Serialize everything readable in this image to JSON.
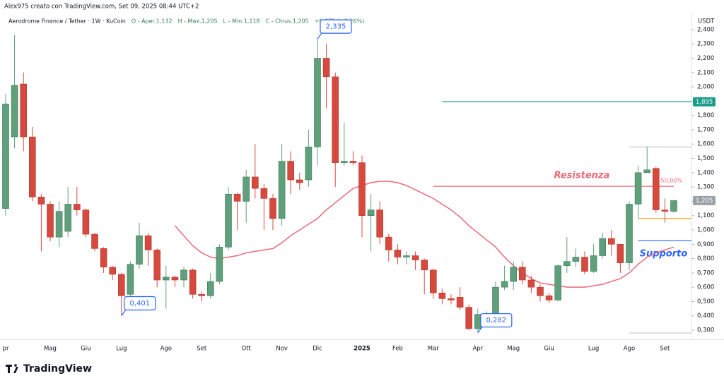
{
  "header": {
    "credit": "Alex975 creato con TradingView.com, Set 09, 2025 08:44 UTC+2",
    "legend": [
      "Aerodrome Finance / Tether · 1W · KuCoin",
      "O - Aper.1,132",
      "H - Max.1,205",
      "L - Min.1,118",
      "C - Chius.1,205",
      "+0,071 (+6,26%)"
    ],
    "brand": "TradingView"
  },
  "chart_data": {
    "type": "candlestick",
    "y_unit": "USDT",
    "categories": [
      "pr",
      null,
      null,
      null,
      null,
      "Mag",
      null,
      null,
      null,
      "Giu",
      null,
      null,
      null,
      "Lug",
      null,
      null,
      null,
      null,
      "Ago",
      null,
      null,
      null,
      "Set",
      null,
      null,
      null,
      null,
      "Ott",
      null,
      null,
      null,
      "Nov",
      null,
      null,
      null,
      "Dic",
      null,
      null,
      null,
      null,
      "2025",
      null,
      null,
      null,
      "Feb",
      null,
      null,
      null,
      "Mar",
      null,
      null,
      null,
      null,
      "Apr",
      null,
      null,
      null,
      "Mag",
      null,
      null,
      null,
      "Giu",
      null,
      null,
      null,
      null,
      "Lug",
      null,
      null,
      null,
      "Ago",
      null,
      null,
      null,
      "Set",
      null
    ],
    "open": [
      1.15,
      1.65,
      2.02,
      1.65,
      1.23,
      1.18,
      0.95,
      0.99,
      1.18,
      1.14,
      0.97,
      0.87,
      0.74,
      0.69,
      0.55,
      0.76,
      0.96,
      0.86,
      0.65,
      0.67,
      0.65,
      0.72,
      0.55,
      0.54,
      0.64,
      0.88,
      1.25,
      1.2,
      1.37,
      1.29,
      1.22,
      1.08,
      1.48,
      1.35,
      1.35,
      1.58,
      2.2,
      2.07,
      1.47,
      1.48,
      1.47,
      1.1,
      1.14,
      0.95,
      0.86,
      0.81,
      0.82,
      0.79,
      0.72,
      0.56,
      0.52,
      0.53,
      0.46,
      0.31,
      0.41,
      0.4,
      0.6,
      0.64,
      0.74,
      0.65,
      0.6,
      0.54,
      0.51,
      0.75,
      0.78,
      0.81,
      0.71,
      0.82,
      0.94,
      0.9,
      0.77,
      1.18,
      1.4,
      1.43,
      1.14,
      1.13
    ],
    "high": [
      1.95,
      2.36,
      2.1,
      1.72,
      1.25,
      1.2,
      1.2,
      1.3,
      1.3,
      1.15,
      0.98,
      0.88,
      0.75,
      0.7,
      0.78,
      1.05,
      0.98,
      0.87,
      0.75,
      0.68,
      0.74,
      0.73,
      0.57,
      0.7,
      0.9,
      1.3,
      1.26,
      1.42,
      1.6,
      1.32,
      1.25,
      1.6,
      1.55,
      1.4,
      1.7,
      2.335,
      2.3,
      2.1,
      1.75,
      1.55,
      1.52,
      1.25,
      1.2,
      0.97,
      0.9,
      0.85,
      0.85,
      0.8,
      0.73,
      0.59,
      0.55,
      0.6,
      0.48,
      0.45,
      0.43,
      0.64,
      0.75,
      0.78,
      0.78,
      0.68,
      0.62,
      0.56,
      0.76,
      0.95,
      0.87,
      0.85,
      0.9,
      0.98,
      1.0,
      0.9,
      1.2,
      1.45,
      1.58,
      1.44,
      1.22,
      1.21
    ],
    "low": [
      1.1,
      1.57,
      1.55,
      1.2,
      0.85,
      0.92,
      0.88,
      0.95,
      1.1,
      0.95,
      0.85,
      0.7,
      0.65,
      0.401,
      0.5,
      0.73,
      0.75,
      0.6,
      0.45,
      0.6,
      0.6,
      0.52,
      0.5,
      0.52,
      0.62,
      0.86,
      1.0,
      1.05,
      1.22,
      1.0,
      1.0,
      1.03,
      1.25,
      1.28,
      1.3,
      1.45,
      1.85,
      1.3,
      1.45,
      1.45,
      0.95,
      0.85,
      0.9,
      0.78,
      0.76,
      0.76,
      0.72,
      0.55,
      0.52,
      0.48,
      0.48,
      0.44,
      0.3,
      0.282,
      0.38,
      0.38,
      0.58,
      0.58,
      0.62,
      0.56,
      0.5,
      0.49,
      0.5,
      0.7,
      0.74,
      0.69,
      0.7,
      0.8,
      0.82,
      0.7,
      0.72,
      1.08,
      1.4,
      1.12,
      1.05,
      1.12
    ],
    "close": [
      1.88,
      2.01,
      1.65,
      1.23,
      1.18,
      0.95,
      1.13,
      1.18,
      1.14,
      0.97,
      0.87,
      0.74,
      0.69,
      0.54,
      0.76,
      0.96,
      0.86,
      0.65,
      0.67,
      0.65,
      0.72,
      0.55,
      0.54,
      0.64,
      0.88,
      1.25,
      1.2,
      1.37,
      1.29,
      1.22,
      1.08,
      1.48,
      1.35,
      1.33,
      1.58,
      2.2,
      2.07,
      1.47,
      1.48,
      1.47,
      1.1,
      1.14,
      0.95,
      0.86,
      0.81,
      0.82,
      0.79,
      0.72,
      0.56,
      0.52,
      0.51,
      0.46,
      0.31,
      0.41,
      0.4,
      0.6,
      0.64,
      0.74,
      0.65,
      0.6,
      0.54,
      0.51,
      0.75,
      0.78,
      0.81,
      0.71,
      0.82,
      0.94,
      0.9,
      0.77,
      1.18,
      1.4,
      1.42,
      1.14,
      1.13,
      1.205
    ],
    "up_color": "#5f9f7b",
    "down_color": "#d6493e",
    "moving_average": {
      "color": "#e86a7a",
      "values": [
        null,
        null,
        null,
        null,
        null,
        null,
        null,
        null,
        null,
        null,
        null,
        null,
        null,
        null,
        null,
        null,
        null,
        null,
        null,
        1.03,
        0.96,
        0.89,
        0.84,
        0.81,
        0.8,
        0.81,
        0.82,
        0.84,
        0.85,
        0.86,
        0.87,
        0.91,
        0.96,
        1.0,
        1.04,
        1.08,
        1.14,
        1.19,
        1.24,
        1.29,
        1.31,
        1.33,
        1.34,
        1.34,
        1.33,
        1.31,
        1.28,
        1.25,
        1.22,
        1.18,
        1.14,
        1.09,
        1.03,
        0.98,
        0.93,
        0.88,
        0.81,
        0.75,
        0.7,
        0.66,
        0.63,
        0.62,
        0.61,
        0.6,
        0.6,
        0.6,
        0.61,
        0.62,
        0.64,
        0.66,
        0.7,
        0.76,
        0.81,
        0.84,
        0.86,
        0.88
      ]
    },
    "levels": [
      {
        "value": 1.895,
        "label": "1,895",
        "color": "#1a9c8c",
        "from": 49
      },
      {
        "value": 1.305,
        "color": "#e86a7a",
        "from": 48,
        "to": 75,
        "text": "Resistenza",
        "note": "50,00%"
      },
      {
        "value": 1.08,
        "color": "#f5a623",
        "from": 71
      },
      {
        "value": 0.925,
        "color": "#2962ff",
        "from": 71,
        "text": "Supporto"
      },
      {
        "value": 1.58,
        "color": "#c4c4c4",
        "from": 70
      },
      {
        "value": 0.28,
        "color": "#c4c4c4",
        "from": 70
      }
    ],
    "annotations": [
      {
        "index": 35,
        "value": 2.335,
        "label": "2,335"
      },
      {
        "index": 13,
        "value": 0.401,
        "label": "0,401"
      },
      {
        "index": 53,
        "value": 0.282,
        "label": "0,282"
      }
    ],
    "price_tag": {
      "value": 1.205,
      "label": "1,205"
    },
    "ylim": [
      0.241,
      2.508
    ],
    "yticks": [
      {
        "value": 0.3,
        "label": "0,300"
      },
      {
        "value": 0.4,
        "label": "0,400"
      },
      {
        "value": 0.5,
        "label": "0,500"
      },
      {
        "value": 0.6,
        "label": "0,600"
      },
      {
        "value": 0.7,
        "label": "0,700"
      },
      {
        "value": 0.8,
        "label": "0,800"
      },
      {
        "value": 0.9,
        "label": "0,900"
      },
      {
        "value": 1.0,
        "label": "1,000"
      },
      {
        "value": 1.1,
        "label": "1,100"
      },
      {
        "value": 1.2,
        "label": "1,200"
      },
      {
        "value": 1.3,
        "label": "1,300"
      },
      {
        "value": 1.4,
        "label": "1,400"
      },
      {
        "value": 1.5,
        "label": "1,500"
      },
      {
        "value": 1.6,
        "label": "1,600"
      },
      {
        "value": 1.7,
        "label": "1,700"
      },
      {
        "value": 1.8,
        "label": "1,800"
      },
      {
        "value": 1.9,
        "label": "1,900"
      },
      {
        "value": 2.0,
        "label": "2,000"
      },
      {
        "value": 2.1,
        "label": "2,100"
      },
      {
        "value": 2.2,
        "label": "2,200"
      },
      {
        "value": 2.3,
        "label": "2,300"
      },
      {
        "value": 2.4,
        "label": "2,400"
      }
    ],
    "grid": false
  }
}
